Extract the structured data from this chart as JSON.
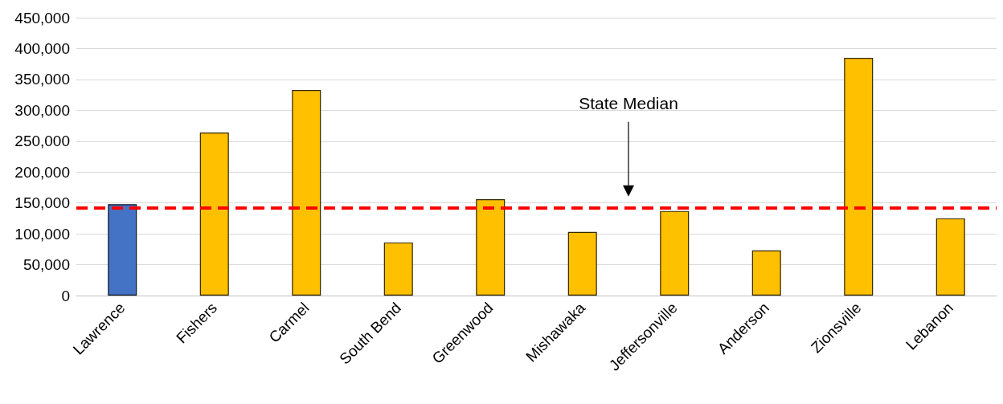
{
  "chart_data": {
    "type": "bar",
    "categories": [
      "Lawrence",
      "Fishers",
      "Carmel",
      "South Bend",
      "Greenwood",
      "Mishawaka",
      "Jeffersonville",
      "Anderson",
      "Zionsville",
      "Lebanon"
    ],
    "values": [
      148000,
      264000,
      333000,
      86000,
      156000,
      103000,
      137000,
      73000,
      385000,
      125000
    ],
    "colors": [
      "#4472c4",
      "#ffc000",
      "#ffc000",
      "#ffc000",
      "#ffc000",
      "#ffc000",
      "#ffc000",
      "#ffc000",
      "#ffc000",
      "#ffc000"
    ],
    "ylim": [
      0,
      450000
    ],
    "yticks": [
      0,
      {
        "value": 50000,
        "label": "50,000"
      },
      {
        "value": 100000,
        "label": "100,000"
      },
      {
        "value": 150000,
        "label": "150,000"
      },
      {
        "value": 200000,
        "label": "200,000"
      },
      {
        "value": 250000,
        "label": "250,000"
      },
      {
        "value": 300000,
        "label": "300,000"
      },
      {
        "value": 350000,
        "label": "350,000"
      },
      {
        "value": 400000,
        "label": "400,000"
      },
      {
        "value": 450000,
        "label": "450,000"
      }
    ],
    "grid": "y",
    "annotations": [
      "State Median"
    ],
    "ref_lines": [
      {
        "axis": "y",
        "value": 142000,
        "color": "#ff0000",
        "line_style": "dashed"
      }
    ]
  }
}
